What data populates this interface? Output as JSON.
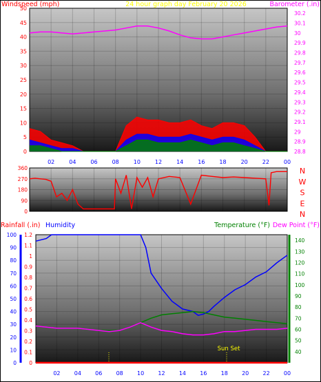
{
  "chart_data": [
    {
      "type": "line",
      "title": "24 hour graph day   February 20 2026",
      "ylabel_left": "Windspeed (mph)",
      "ylabel_right": "Barometer (.in)",
      "x_ticks": [
        "02",
        "04",
        "06",
        "08",
        "10",
        "12",
        "14",
        "16",
        "18",
        "20",
        "22",
        "00"
      ],
      "left_ticks": [
        "0",
        "5",
        "10",
        "15",
        "20",
        "25",
        "30",
        "35",
        "40",
        "45",
        "50"
      ],
      "ylim_left": [
        0,
        50
      ],
      "right_ticks": [
        "28.8",
        "28.9",
        "29",
        "29.1",
        "29.2",
        "29.3",
        "29.4",
        "29.5",
        "29.6",
        "29.7",
        "29.8",
        "29.9",
        "30",
        "30.1",
        "30.2"
      ],
      "ylim_right": [
        28.8,
        30.25
      ],
      "grid": true,
      "series": [
        {
          "name": "Barometer (.in)",
          "color": "#ff00ff",
          "x": [
            0,
            1,
            2,
            3,
            4,
            5,
            6,
            7,
            8,
            9,
            10,
            11,
            12,
            13,
            14,
            15,
            16,
            17,
            18,
            19,
            20,
            21,
            22,
            23,
            24
          ],
          "values": [
            30.0,
            30.01,
            30.01,
            30.0,
            29.99,
            30.0,
            30.01,
            30.02,
            30.03,
            30.05,
            30.07,
            30.07,
            30.05,
            30.02,
            29.98,
            29.95,
            29.94,
            29.94,
            29.96,
            29.98,
            30.0,
            30.02,
            30.04,
            30.06,
            30.07
          ]
        },
        {
          "name": "Wind Gust",
          "color": "#ff0000",
          "x": [
            0,
            1,
            2,
            3,
            4,
            5,
            6,
            7,
            8,
            9,
            10,
            11,
            12,
            13,
            14,
            15,
            16,
            17,
            18,
            19,
            20,
            21,
            22,
            23,
            24
          ],
          "values": [
            8,
            7,
            4,
            3,
            2,
            0,
            0,
            0,
            0,
            9,
            12,
            11,
            11,
            10,
            10,
            11,
            9,
            8,
            10,
            10,
            9,
            5,
            0,
            0,
            0
          ]
        },
        {
          "name": "Wind Average",
          "color": "#0000ff",
          "x": [
            0,
            1,
            2,
            3,
            4,
            5,
            6,
            7,
            8,
            9,
            10,
            11,
            12,
            13,
            14,
            15,
            16,
            17,
            18,
            19,
            20,
            21,
            22,
            23,
            24
          ],
          "values": [
            4,
            3,
            2,
            1,
            1,
            0,
            0,
            0,
            0,
            4,
            6,
            6,
            5,
            5,
            5,
            6,
            5,
            4,
            5,
            5,
            4,
            2,
            0,
            0,
            0
          ]
        },
        {
          "name": "Wind Speed",
          "color": "#008000",
          "x": [
            0,
            1,
            2,
            3,
            4,
            5,
            6,
            7,
            8,
            9,
            10,
            11,
            12,
            13,
            14,
            15,
            16,
            17,
            18,
            19,
            20,
            21,
            22,
            23,
            24
          ],
          "values": [
            2,
            2,
            1,
            0,
            0,
            0,
            0,
            0,
            0,
            2,
            4,
            4,
            3,
            3,
            3,
            4,
            3,
            2,
            3,
            3,
            2,
            1,
            0,
            0,
            0
          ]
        }
      ]
    },
    {
      "type": "line",
      "ylabel_right": "N W S E N",
      "right_labels": [
        "N",
        "W",
        "S",
        "E",
        "N"
      ],
      "left_ticks": [
        "0",
        "90",
        "180",
        "270",
        "360"
      ],
      "ylim": [
        0,
        360
      ],
      "x_ticks": [],
      "series": [
        {
          "name": "Wind Direction",
          "color": "#ff0000",
          "x": [
            0,
            0.5,
            1,
            1.5,
            2,
            2.5,
            3,
            3.5,
            4,
            4.5,
            5,
            6,
            7,
            7.9,
            8,
            8.5,
            9,
            9.5,
            10,
            10.5,
            11,
            11.5,
            12,
            13,
            14,
            15,
            16,
            17,
            18,
            19,
            20,
            21,
            22,
            22.3,
            22.5,
            23,
            24
          ],
          "values": [
            270,
            275,
            270,
            265,
            250,
            120,
            150,
            90,
            180,
            60,
            20,
            20,
            20,
            20,
            270,
            150,
            300,
            20,
            280,
            200,
            280,
            120,
            270,
            290,
            280,
            60,
            300,
            290,
            280,
            285,
            280,
            275,
            270,
            50,
            320,
            330,
            330
          ]
        }
      ]
    },
    {
      "type": "line",
      "ylabel_left_1": "Rainfall (.in)",
      "ylabel_left_2": "Humidity",
      "ylabel_right_1": "Temperature (°F)",
      "ylabel_right_2": "Dew Point (°F)",
      "x_ticks": [
        "02",
        "04",
        "06",
        "08",
        "10",
        "12",
        "14",
        "16",
        "18",
        "20",
        "22",
        "00"
      ],
      "humidity_ticks": [
        "0",
        "10",
        "20",
        "30",
        "40",
        "50",
        "60",
        "70",
        "80",
        "90",
        "100"
      ],
      "ylim_humidity": [
        0,
        100
      ],
      "rain_ticks": [
        "0",
        "0.1",
        "0.2",
        "0.3",
        "0.4",
        "0.5",
        "0.6",
        "0.7",
        "0.8",
        "0.9",
        "1",
        "1.1",
        "1.2"
      ],
      "ylim_rain": [
        0,
        1.2
      ],
      "temp_ticks": [
        "40",
        "50",
        "60",
        "70",
        "80",
        "90",
        "100",
        "110",
        "120",
        "130",
        "140"
      ],
      "ylim_temp": [
        30,
        145
      ],
      "annotation": "Sun Set",
      "grid": true,
      "series": [
        {
          "name": "Humidity",
          "color": "#0000ff",
          "axis": "humidity",
          "x": [
            0,
            1,
            1.5,
            2,
            3,
            4,
            5,
            6,
            7,
            8,
            9,
            10,
            10.5,
            11,
            12,
            13,
            14,
            15,
            15.5,
            16,
            16.5,
            17,
            18,
            19,
            20,
            21,
            22,
            23,
            24
          ],
          "values": [
            95,
            97,
            100,
            100,
            100,
            100,
            100,
            100,
            100,
            100,
            100,
            100,
            90,
            70,
            58,
            48,
            42,
            40,
            37,
            38,
            40,
            44,
            51,
            57,
            61,
            67,
            71,
            78,
            84
          ]
        },
        {
          "name": "Temperature (°F)",
          "color": "#008000",
          "axis": "temp",
          "x": [
            0,
            1,
            2,
            3,
            4,
            5,
            6,
            7,
            8,
            9,
            10,
            11,
            12,
            13,
            14,
            15,
            16,
            17,
            18,
            19,
            20,
            21,
            22,
            23,
            24
          ],
          "values": [
            63,
            62,
            61,
            61,
            61,
            60,
            59,
            59,
            59,
            62,
            66,
            70,
            73,
            74,
            75,
            76,
            75,
            73,
            71,
            70,
            69,
            68,
            67,
            66,
            65
          ]
        },
        {
          "name": "Dew Point (°F)",
          "color": "#ff00ff",
          "axis": "temp",
          "x": [
            0,
            1,
            2,
            3,
            4,
            5,
            6,
            7,
            8,
            9,
            10,
            11,
            12,
            13,
            14,
            15,
            16,
            17,
            18,
            19,
            20,
            21,
            22,
            23,
            24
          ],
          "values": [
            63,
            62,
            61,
            61,
            61,
            60,
            59,
            58,
            59,
            62,
            66,
            62,
            59,
            58,
            56,
            55,
            55,
            56,
            58,
            58,
            59,
            60,
            60,
            60,
            61
          ]
        },
        {
          "name": "Rainfall (.in)",
          "color": "#ff0000",
          "axis": "rain",
          "x": [
            0,
            24
          ],
          "values": [
            0,
            0
          ]
        }
      ]
    }
  ]
}
